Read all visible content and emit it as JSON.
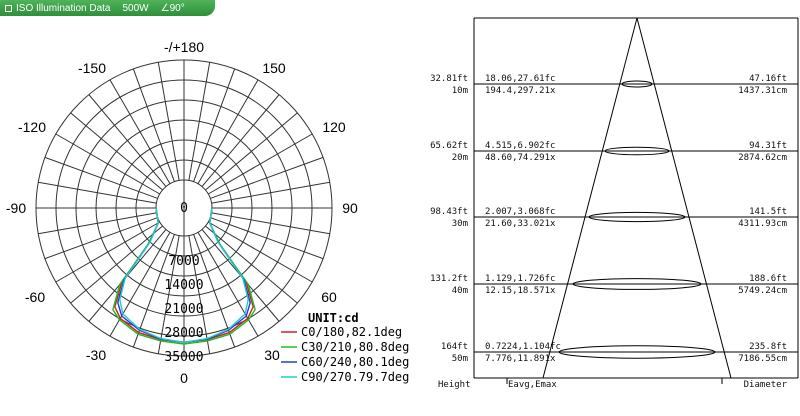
{
  "tab": {
    "title": "ISO Illumination  Data",
    "power": "500W",
    "beam": "∠90°"
  },
  "chart_data": [
    {
      "type": "polar",
      "angle_labels": [
        "-/+180",
        "-150",
        "150",
        "-120",
        "120",
        "-90",
        "90",
        "-60",
        "60",
        "-30",
        "30",
        "0"
      ],
      "radial_ticks": [
        "0",
        "7000",
        "14000",
        "21000",
        "28000",
        "35000"
      ],
      "radial_max": 35000,
      "unit": "UNIT:cd",
      "grid": true,
      "legend_position": "bottom-right",
      "series": [
        {
          "name": "C0/180,82.1deg",
          "color": "#cc2222",
          "angles": [
            0,
            10,
            20,
            30,
            35,
            40,
            42,
            45,
            60,
            90
          ],
          "values": [
            31000,
            30800,
            30500,
            29000,
            27000,
            20000,
            12000,
            6000,
            500,
            0
          ]
        },
        {
          "name": "C30/210,80.8deg",
          "color": "#22bb22",
          "angles": [
            0,
            10,
            20,
            30,
            35,
            40,
            42,
            45,
            60,
            90
          ],
          "values": [
            31500,
            31200,
            31000,
            29500,
            28000,
            21000,
            12500,
            6500,
            500,
            0
          ]
        },
        {
          "name": "C60/240,80.1deg",
          "color": "#223fcc",
          "angles": [
            0,
            10,
            20,
            30,
            35,
            40,
            42,
            45,
            60,
            90
          ],
          "values": [
            31000,
            30700,
            29800,
            28200,
            25500,
            19000,
            11500,
            6000,
            500,
            0
          ]
        },
        {
          "name": "C90/270.79.7deg",
          "color": "#22cccc",
          "angles": [
            0,
            10,
            20,
            30,
            35,
            40,
            42,
            45,
            60,
            90
          ],
          "values": [
            31000,
            30500,
            29500,
            27500,
            24500,
            18500,
            11000,
            5800,
            500,
            0
          ]
        }
      ]
    },
    {
      "type": "table",
      "columns": [
        "Height",
        "Eavg,Emax",
        "Diameter"
      ],
      "rows": [
        {
          "height_ft": "32.81ft",
          "height_m": "10m",
          "e_fc": "18.06,27.61fc",
          "e_lx": "194.4,297.21x",
          "dia_ft": "47.16ft",
          "dia_cm": "1437.31cm"
        },
        {
          "height_ft": "65.62ft",
          "height_m": "20m",
          "e_fc": "4.515,6.902fc",
          "e_lx": "48.60,74.291x",
          "dia_ft": "94.31ft",
          "dia_cm": "2874.62cm"
        },
        {
          "height_ft": "98.43ft",
          "height_m": "30m",
          "e_fc": "2.007,3.068fc",
          "e_lx": "21.60,33.021x",
          "dia_ft": "141.5ft",
          "dia_cm": "4311.93cm"
        },
        {
          "height_ft": "131.2ft",
          "height_m": "40m",
          "e_fc": "1.129,1.726fc",
          "e_lx": "12.15,18.571x",
          "dia_ft": "188.6ft",
          "dia_cm": "5749.24cm"
        },
        {
          "height_ft": "164ft",
          "height_m": "50m",
          "e_fc": "0.7224,1.104fc",
          "e_lx": "7.776,11.891x",
          "dia_ft": "235.8ft",
          "dia_cm": "7186.55cm"
        }
      ]
    }
  ]
}
